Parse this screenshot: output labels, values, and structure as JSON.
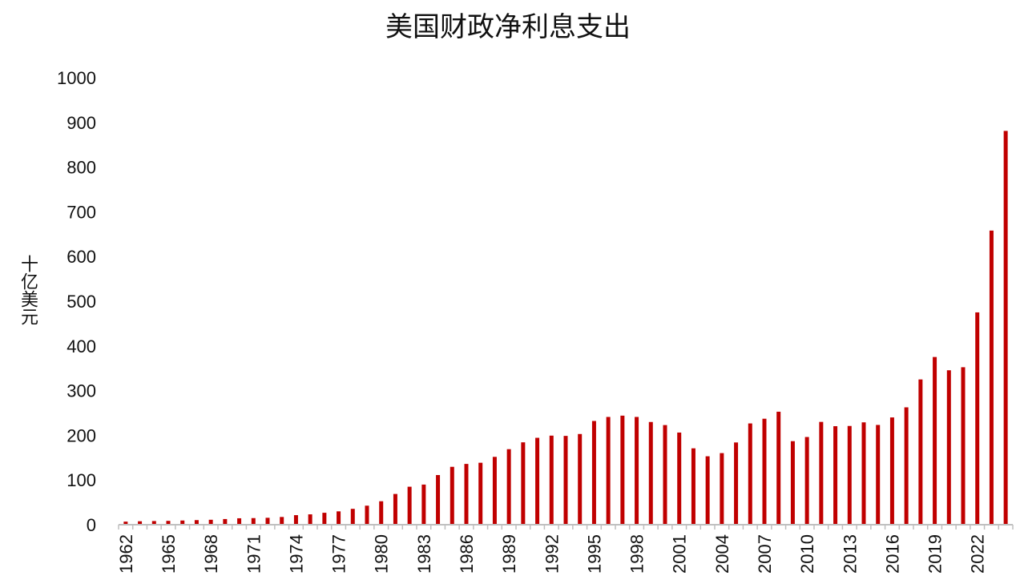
{
  "chart_data": {
    "type": "bar",
    "title": "美国财政净利息支出",
    "xlabel": "",
    "ylabel": "十亿美元",
    "ylim": [
      0,
      1000
    ],
    "yticks": [
      0,
      100,
      200,
      300,
      400,
      500,
      600,
      700,
      800,
      900,
      1000
    ],
    "grid": false,
    "legend": "none",
    "bar_color": "#c00000",
    "axis_color": "#bfbfbf",
    "categories": [
      "1962",
      "1963",
      "1964",
      "1965",
      "1966",
      "1967",
      "1968",
      "1969",
      "1970",
      "1971",
      "1972",
      "1973",
      "1974",
      "1975",
      "1976",
      "1977",
      "1978",
      "1979",
      "1980",
      "1981",
      "1982",
      "1983",
      "1984",
      "1985",
      "1986",
      "1987",
      "1988",
      "1989",
      "1990",
      "1991",
      "1992",
      "1993",
      "1994",
      "1995",
      "1996",
      "1997",
      "1998",
      "1999",
      "2000",
      "2001",
      "2002",
      "2003",
      "2004",
      "2005",
      "2006",
      "2007",
      "2008",
      "2009",
      "2010",
      "2011",
      "2012",
      "2013",
      "2014",
      "2015",
      "2016",
      "2017",
      "2018",
      "2019",
      "2020",
      "2021",
      "2022",
      "2023",
      "2024"
    ],
    "x_tick_labels": [
      "1962",
      "1965",
      "1968",
      "1971",
      "1974",
      "1977",
      "1980",
      "1983",
      "1986",
      "1989",
      "1992",
      "1995",
      "1998",
      "2001",
      "2004",
      "2007",
      "2010",
      "2013",
      "2016",
      "2019",
      "2022"
    ],
    "values": [
      6.9,
      7.7,
      8.2,
      8.6,
      9.4,
      10.3,
      11.1,
      12.7,
      14.4,
      14.8,
      15.5,
      17.3,
      21.4,
      23.2,
      26.7,
      29.9,
      35.5,
      42.6,
      52.5,
      68.8,
      85.0,
      89.8,
      111.1,
      129.5,
      136.0,
      138.6,
      151.8,
      169.0,
      184.3,
      194.4,
      199.3,
      198.7,
      202.9,
      232.1,
      241.1,
      244.0,
      241.1,
      229.8,
      222.9,
      206.2,
      170.9,
      153.1,
      160.2,
      184.0,
      226.6,
      237.1,
      252.8,
      186.9,
      196.2,
      230.0,
      220.4,
      220.9,
      229.0,
      223.2,
      240.0,
      262.6,
      325.0,
      375.2,
      345.5,
      352.3,
      475.0,
      658.0,
      881.0
    ]
  }
}
